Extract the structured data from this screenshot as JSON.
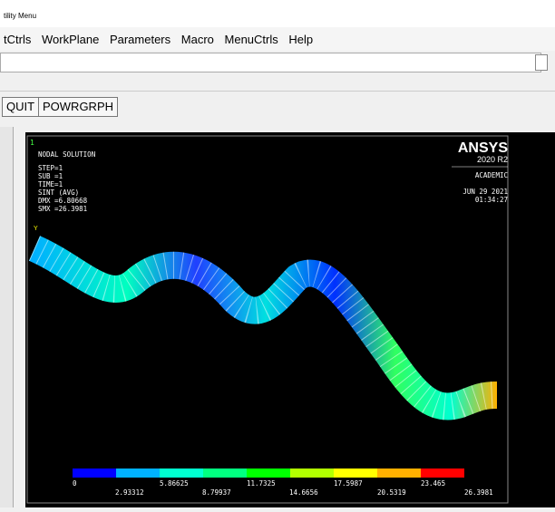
{
  "window": {
    "title": "tility Menu"
  },
  "menu": [
    "tCtrls",
    "WorkPlane",
    "Parameters",
    "Macro",
    "MenuCtrls",
    "Help"
  ],
  "toolbar": [
    "QUIT",
    "POWRGRPH"
  ],
  "graphics": {
    "window_number": "1",
    "info": [
      "NODAL SOLUTION",
      "STEP=1",
      "SUB =1",
      "TIME=1",
      "SINT     (AVG)",
      "DMX =6.80668",
      "SMX =26.3981"
    ],
    "logo": "ANSYS",
    "version": "2020 R2",
    "license": "ACADEMIC",
    "date": "JUN 29 2021",
    "time": "01:34:27",
    "axis_label": "Y",
    "legend_upper": [
      "0",
      "5.86625",
      "11.7325",
      "17.5987",
      "23.465"
    ],
    "legend_lower": [
      "2.93312",
      "8.79937",
      "14.6656",
      "20.5319",
      "26.3981"
    ]
  }
}
